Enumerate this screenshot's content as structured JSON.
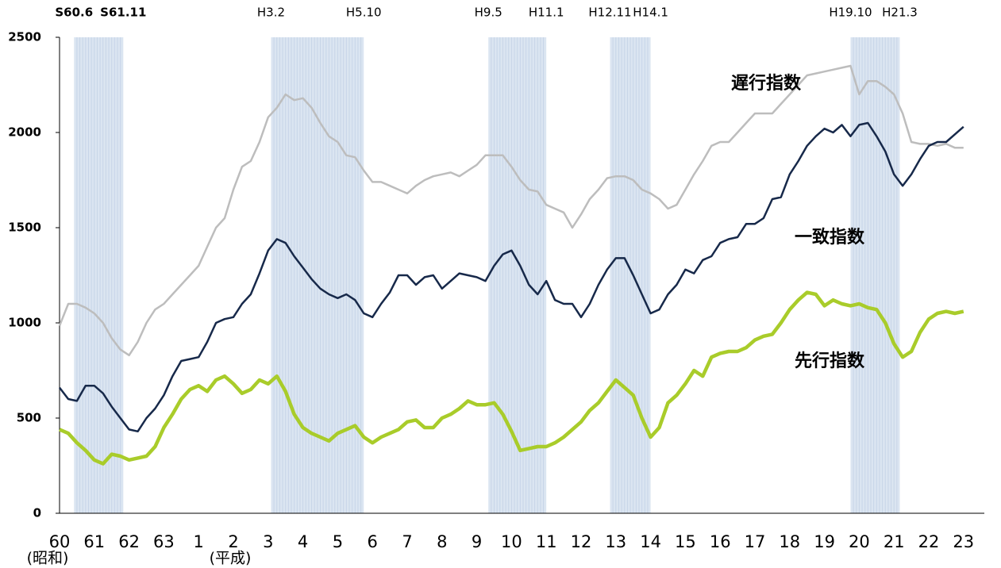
{
  "chart_data": {
    "type": "line",
    "categories": [
      "60",
      null,
      null,
      null,
      "61",
      null,
      null,
      null,
      "62",
      null,
      null,
      null,
      "63",
      null,
      null,
      null,
      "1",
      null,
      null,
      null,
      "2",
      null,
      null,
      null,
      "3",
      null,
      null,
      null,
      "4",
      null,
      null,
      null,
      "5",
      null,
      null,
      null,
      "6",
      null,
      null,
      null,
      "7",
      null,
      null,
      null,
      "8",
      null,
      null,
      null,
      "9",
      null,
      null,
      null,
      "10",
      null,
      null,
      null,
      "11",
      null,
      null,
      null,
      "12",
      null,
      null,
      null,
      "13",
      null,
      null,
      null,
      "14",
      null,
      null,
      null,
      "15",
      null,
      null,
      null,
      "16",
      null,
      null,
      null,
      "17",
      null,
      null,
      null,
      "18",
      null,
      null,
      null,
      "19",
      null,
      null,
      null,
      "20",
      null,
      null,
      null,
      "21",
      null,
      null,
      null,
      "22",
      null,
      null,
      null,
      "23"
    ],
    "series": [
      {
        "name": "遅行指数",
        "color": "#bdbdbd",
        "values": [
          985,
          1100,
          1100,
          1080,
          1050,
          1000,
          920,
          860,
          830,
          900,
          1000,
          1070,
          1100,
          1150,
          1200,
          1250,
          1300,
          1400,
          1500,
          1550,
          1700,
          1820,
          1850,
          1950,
          2080,
          2130,
          2200,
          2170,
          2180,
          2130,
          2050,
          1980,
          1950,
          1880,
          1870,
          1800,
          1740,
          1740,
          1720,
          1700,
          1680,
          1720,
          1750,
          1770,
          1780,
          1790,
          1770,
          1800,
          1830,
          1880,
          1880,
          1880,
          1820,
          1750,
          1700,
          1690,
          1620,
          1600,
          1580,
          1500,
          1570,
          1650,
          1700,
          1760,
          1770,
          1770,
          1750,
          1700,
          1680,
          1650,
          1600,
          1620,
          1700,
          1780,
          1850,
          1930,
          1950,
          1950,
          2000,
          2050,
          2100,
          2100,
          2100,
          2150,
          2200,
          2250,
          2300,
          2310,
          2320,
          2330,
          2340,
          2350,
          2200,
          2270,
          2270,
          2240,
          2200,
          2100,
          1950,
          1940,
          1940,
          1930,
          1940,
          1920,
          1920
        ]
      },
      {
        "name": "一致指数",
        "color": "#17294a",
        "values": [
          660,
          600,
          590,
          670,
          670,
          630,
          560,
          500,
          440,
          430,
          500,
          550,
          620,
          720,
          800,
          810,
          820,
          900,
          1000,
          1020,
          1030,
          1100,
          1150,
          1260,
          1380,
          1440,
          1420,
          1350,
          1290,
          1230,
          1180,
          1150,
          1130,
          1150,
          1120,
          1050,
          1030,
          1100,
          1160,
          1250,
          1250,
          1200,
          1240,
          1250,
          1180,
          1220,
          1260,
          1250,
          1240,
          1220,
          1300,
          1360,
          1380,
          1300,
          1200,
          1150,
          1220,
          1120,
          1100,
          1100,
          1030,
          1100,
          1200,
          1280,
          1340,
          1340,
          1250,
          1150,
          1050,
          1070,
          1150,
          1200,
          1280,
          1260,
          1330,
          1350,
          1420,
          1440,
          1450,
          1520,
          1520,
          1550,
          1650,
          1660,
          1780,
          1850,
          1930,
          1980,
          2020,
          2000,
          2040,
          1980,
          2040,
          2050,
          1980,
          1900,
          1780,
          1720,
          1780,
          1860,
          1930,
          1950,
          1950,
          1990,
          2030
        ]
      },
      {
        "name": "先行指数",
        "color": "#a9cc2a",
        "values": [
          440,
          420,
          370,
          330,
          280,
          260,
          310,
          300,
          280,
          290,
          300,
          350,
          450,
          520,
          600,
          650,
          670,
          640,
          700,
          720,
          680,
          630,
          650,
          700,
          680,
          720,
          640,
          520,
          450,
          420,
          400,
          380,
          420,
          440,
          460,
          400,
          370,
          400,
          420,
          440,
          480,
          490,
          450,
          450,
          500,
          520,
          550,
          590,
          570,
          570,
          580,
          520,
          430,
          330,
          340,
          350,
          350,
          370,
          400,
          440,
          480,
          540,
          580,
          640,
          700,
          660,
          620,
          500,
          400,
          450,
          580,
          620,
          680,
          750,
          720,
          820,
          840,
          850,
          850,
          870,
          910,
          930,
          940,
          1000,
          1070,
          1120,
          1160,
          1150,
          1090,
          1120,
          1100,
          1090,
          1100,
          1080,
          1070,
          1000,
          890,
          820,
          850,
          950,
          1020,
          1050,
          1060,
          1050,
          1060
        ]
      }
    ],
    "recessions": [
      [
        "S60.6",
        "S61.11"
      ],
      [
        "H3.2",
        "H5.10"
      ],
      [
        "H9.5",
        "H11.1"
      ],
      [
        "H12.11",
        "H14.1"
      ],
      [
        "H19.10",
        "H21.3"
      ]
    ],
    "era_labels": [
      "(昭和)",
      "(平成)"
    ],
    "ylim": [
      0,
      2500
    ],
    "yticks": [
      0,
      500,
      1000,
      1500,
      2000,
      2500
    ]
  }
}
